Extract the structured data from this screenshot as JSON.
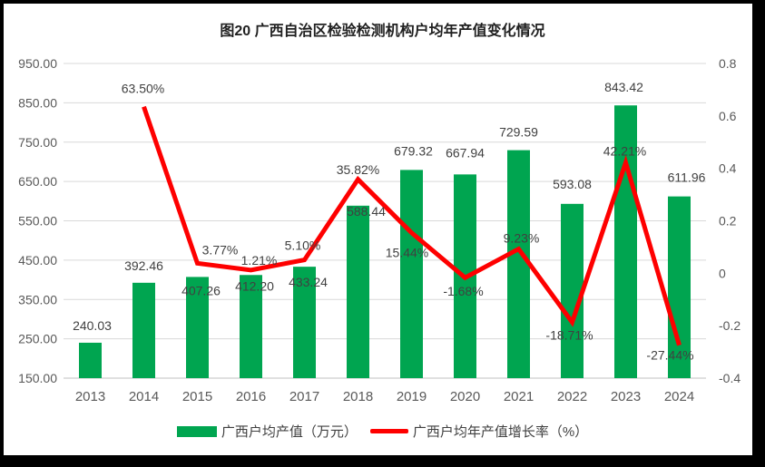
{
  "title": "图20 广西自治区检验检测机构户均年产值变化情况",
  "chart_data": {
    "type": "bar+line",
    "title": "图20 广西自治区检验检测机构户均年产值变化情况",
    "categories": [
      "2013",
      "2014",
      "2015",
      "2016",
      "2017",
      "2018",
      "2019",
      "2020",
      "2021",
      "2022",
      "2023",
      "2024"
    ],
    "series": [
      {
        "name": "广西户均产值（万元）",
        "chart_type": "bar",
        "axis": "left",
        "color": "#00a550",
        "values": [
          240.03,
          392.46,
          407.26,
          412.2,
          433.24,
          588.44,
          679.32,
          667.94,
          729.59,
          593.08,
          843.42,
          611.96
        ],
        "labels": [
          "240.03",
          "392.46",
          "407.26",
          "412.20",
          "433.24",
          "588.44",
          "679.32",
          "667.94",
          "729.59",
          "593.08",
          "843.42",
          "611.96"
        ]
      },
      {
        "name": "广西户均年产值增长率（%）",
        "chart_type": "line",
        "axis": "right",
        "color": "#fe0000",
        "values": [
          null,
          0.635,
          0.0377,
          0.0121,
          0.051,
          0.3582,
          0.1544,
          -0.0168,
          0.0923,
          -0.1871,
          0.4221,
          -0.2744
        ],
        "labels": [
          "",
          "63.50%",
          "3.77%",
          "1.21%",
          "5.10%",
          "35.82%",
          "15.44%",
          "-1.68%",
          "9.23%",
          "-18.71%",
          "42.21%",
          "-27.44%"
        ]
      }
    ],
    "left_axis": {
      "min": 150,
      "max": 950,
      "tick_step": 100,
      "ticks": [
        "950.00",
        "850.00",
        "750.00",
        "650.00",
        "550.00",
        "450.00",
        "350.00",
        "250.00",
        "150.00"
      ]
    },
    "right_axis": {
      "min": -0.4,
      "max": 0.8,
      "tick_step": 0.2,
      "ticks": [
        "0.8",
        "0.6",
        "0.4",
        "0.2",
        "0",
        "-0.2",
        "-0.4"
      ]
    },
    "grid": true,
    "legend_position": "bottom",
    "label_offsets": {
      "bar_dx": [
        2,
        0,
        4,
        4,
        4,
        9,
        2,
        0,
        0,
        0,
        -2,
        8
      ],
      "bar_dy": [
        -19,
        -19,
        15,
        12,
        17,
        6,
        -21,
        -24,
        -20,
        -22,
        -20,
        -21
      ],
      "line_dx": [
        0,
        -1,
        25,
        9,
        -2,
        0,
        -5,
        -2,
        3,
        -3,
        -1,
        -10
      ],
      "line_dy": [
        0,
        -20,
        -15,
        -11,
        -16,
        -11,
        22,
        15,
        -12,
        14,
        -13,
        11
      ]
    },
    "colors": {
      "grid": "#d9d9d9",
      "axis_line": "#c0c0c0",
      "tick_text": "#595959",
      "data_label": "#404040"
    }
  }
}
